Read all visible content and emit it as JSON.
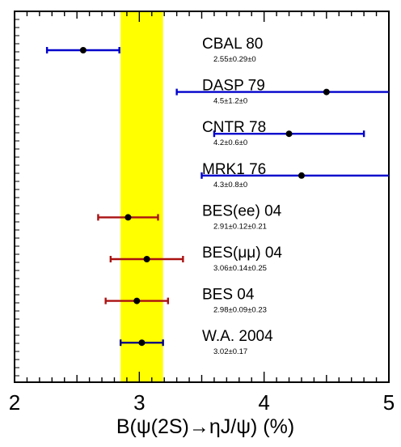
{
  "chart_data": {
    "type": "scatter",
    "xlabel": "B(ψ(2S)→ηJ/ψ) (%)",
    "ylabel": "",
    "xlim": [
      2,
      5
    ],
    "x_ticks": [
      "2",
      "3",
      "4",
      "5"
    ],
    "band": {
      "from": 2.85,
      "to": 3.19,
      "color": "#ffff00"
    },
    "measurements": [
      {
        "name": "CBAL 80",
        "value_text": "2.55±0.29±0",
        "x": 2.55,
        "lo": 2.26,
        "hi": 2.84,
        "color": "#0000cc",
        "caps": true
      },
      {
        "name": "DASP 79",
        "value_text": "4.5±1.2±0",
        "x": 4.5,
        "lo": 3.3,
        "hi": 5.7,
        "color": "#0000cc",
        "caps": true
      },
      {
        "name": "CNTR 78",
        "value_text": "4.2±0.6±0",
        "x": 4.2,
        "lo": 3.6,
        "hi": 4.8,
        "color": "#0000cc",
        "caps": true
      },
      {
        "name": "MRK1 76",
        "value_text": "4.3±0.8±0",
        "x": 4.3,
        "lo": 3.5,
        "hi": 5.1,
        "color": "#0000cc",
        "caps": true
      },
      {
        "name": "BES(ee) 04",
        "value_text": "2.91±0.12±0.21",
        "x": 2.91,
        "lo": 2.67,
        "hi": 3.15,
        "color": "#aa1111",
        "caps": true
      },
      {
        "name": "BES(μμ) 04",
        "value_text": "3.06±0.14±0.25",
        "x": 3.06,
        "lo": 2.77,
        "hi": 3.35,
        "color": "#aa1111",
        "caps": true
      },
      {
        "name": "BES 04",
        "value_text": "2.98±0.09±0.23",
        "x": 2.98,
        "lo": 2.73,
        "hi": 3.23,
        "color": "#aa1111",
        "caps": true
      },
      {
        "name": "W.A. 2004",
        "value_text": "3.02±0.17",
        "x": 3.02,
        "lo": 2.85,
        "hi": 3.19,
        "color": "#000080",
        "caps": true
      }
    ]
  }
}
